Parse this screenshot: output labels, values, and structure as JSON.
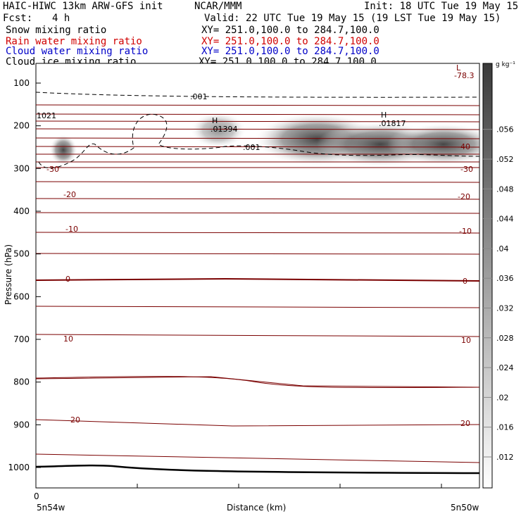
{
  "header": {
    "title": "HAIC-HIWC 13km ARW-GFS init",
    "org": "NCAR/MMM",
    "init": "Init: 18 UTC Tue 19 May 15",
    "fcst_label": "Fcst:",
    "fcst_value": "4 h",
    "valid": "Valid: 22 UTC Tue 19 May 15 (19 LST Tue 19 May 15)",
    "fields": [
      {
        "name": "Snow mixing ratio",
        "xy": "XY= 251.0,100.0 to 284.7,100.0",
        "color": "#000000"
      },
      {
        "name": "Rain water mixing ratio",
        "xy": "XY= 251.0,100.0 to 284.7,100.0",
        "color": "#d00000"
      },
      {
        "name": "Cloud water mixing ratio",
        "xy": "XY= 251.0,100.0 to 284.7,100.0",
        "color": "#0000c8"
      },
      {
        "name": "Cloud ice mixing ratio",
        "xy": "XY= 251.0,100.0 to 284.7,100.0",
        "color": "#000000"
      }
    ]
  },
  "chart_data": {
    "type": "heatmap",
    "ylabel": "Pressure (hPa)",
    "xlabel": "Distance (km)",
    "yticks": [
      100,
      200,
      300,
      400,
      500,
      600,
      700,
      800,
      900,
      1000
    ],
    "ylim": [
      1050,
      75
    ],
    "x_start_label": "0",
    "x_left_label": "5n54w",
    "x_right_label": "5n50w",
    "colorbar": {
      "units": "g kg⁻¹",
      "ticks": [
        ".012",
        ".016",
        ".02",
        ".024",
        ".028",
        ".032",
        ".036",
        ".04",
        ".044",
        ".048",
        ".052",
        ".056"
      ]
    },
    "maxima": [
      {
        "symbol": "H",
        "value": ".01394"
      },
      {
        "symbol": "H",
        "value": ".01817"
      }
    ],
    "minima": [
      {
        "symbol": "L",
        "value": "-78.3"
      }
    ],
    "station_label": "1021",
    "temperature_labels": {
      "left": [
        "-30",
        "-20",
        "-10",
        "0",
        "10",
        "20"
      ],
      "right": [
        "-40",
        "-30",
        "-20",
        "-10",
        "0",
        "10",
        "20"
      ]
    },
    "cloud_ice_contour_labels": [
      ".001",
      ".001"
    ],
    "line_colors": {
      "temperature": "#7a0000",
      "zero_isotherm": "#7a0000",
      "surface": "#000000"
    }
  }
}
